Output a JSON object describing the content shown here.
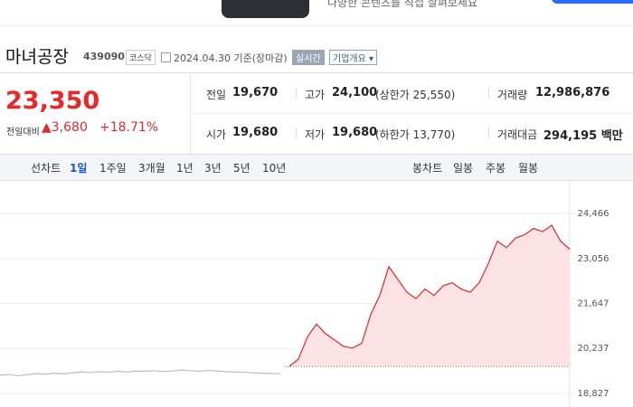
{
  "banner": {
    "text": "다양한 콘텐츠를 직접 살펴보세요"
  },
  "header": {
    "name": "마녀공장",
    "code": "439090",
    "market": "코스닥",
    "date": "2024.04.30 기준(장마감)",
    "realtime": "실시간",
    "overview": "기업개요"
  },
  "quote": {
    "price": "23,350",
    "change_label": "전일대비",
    "change": "▲3,680",
    "rate": "+18.71%",
    "rows": [
      [
        [
          "전일",
          "19,670",
          ""
        ],
        [
          "고가",
          "24,100",
          "(상한가 25,550)"
        ],
        [
          "거래량",
          "12,986,876",
          ""
        ]
      ],
      [
        [
          "시가",
          "19,680",
          ""
        ],
        [
          "저가",
          "19,680",
          "(하한가 13,770)"
        ],
        [
          "거래대금",
          "294,195 백만",
          ""
        ]
      ]
    ]
  },
  "tabs": {
    "line_label": "선차트",
    "line": [
      "1일",
      "1주일",
      "3개월",
      "1년",
      "3년",
      "5년",
      "10년"
    ],
    "candle_label": "봉차트",
    "candle": [
      "일봉",
      "주봉",
      "월봉"
    ]
  },
  "chart_data": {
    "type": "line",
    "ylim": [
      18400,
      25520
    ],
    "yticks": [
      {
        "value": 24466,
        "label": "24,466"
      },
      {
        "value": 23056,
        "label": "23,056"
      },
      {
        "value": 21647,
        "label": "21,647"
      },
      {
        "value": 20237,
        "label": "20,237"
      },
      {
        "value": 18827,
        "label": "18,827"
      }
    ],
    "baseline": 19670,
    "grid": true,
    "series": [
      {
        "color": "#bdbdbd",
        "values": [
          19400,
          19420,
          19380,
          19410,
          19450,
          19430,
          19460,
          19440,
          19470,
          19500,
          19480,
          19510,
          19490,
          19520,
          19500,
          19530,
          19520,
          19540,
          19510,
          19530,
          19560,
          19540,
          19520,
          19550,
          19530,
          19510,
          19500,
          19490,
          19470,
          19460,
          19450,
          19440,
          null,
          null,
          null,
          null,
          null,
          null,
          null,
          null,
          null,
          null,
          null,
          null,
          null,
          null,
          null,
          null,
          null,
          null,
          null,
          null,
          null,
          null,
          null,
          null,
          null,
          null,
          null,
          null,
          null,
          null,
          null,
          null
        ]
      },
      {
        "color": "#e8272a",
        "fill": "#fde3e4",
        "values": [
          null,
          null,
          null,
          null,
          null,
          null,
          null,
          null,
          null,
          null,
          null,
          null,
          null,
          null,
          null,
          null,
          null,
          null,
          null,
          null,
          null,
          null,
          null,
          null,
          null,
          null,
          null,
          null,
          null,
          null,
          null,
          null,
          19680,
          19900,
          20600,
          21000,
          20700,
          20500,
          20300,
          20250,
          20400,
          21300,
          21900,
          22800,
          22400,
          22000,
          21800,
          22100,
          21900,
          22200,
          22300,
          22100,
          22000,
          22300,
          22900,
          23600,
          23400,
          23700,
          23800,
          24000,
          23900,
          24100,
          23600,
          23350
        ]
      }
    ]
  }
}
